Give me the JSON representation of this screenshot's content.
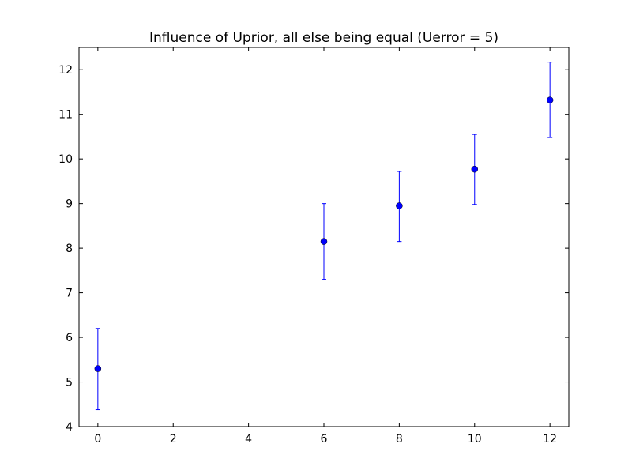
{
  "chart_data": {
    "type": "scatter",
    "title": "Influence of Uprior, all else being equal (Uerror = 5)",
    "xlabel": "",
    "ylabel": "",
    "xlim": [
      -0.5,
      12.5
    ],
    "ylim": [
      4,
      12.5
    ],
    "x_ticks": [
      0,
      2,
      4,
      6,
      8,
      10,
      12
    ],
    "y_ticks": [
      4,
      5,
      6,
      7,
      8,
      9,
      10,
      11,
      12
    ],
    "grid": false,
    "series": [
      {
        "color": "#0000ff",
        "points": [
          {
            "x": 0,
            "y": 5.3,
            "err_low": 4.38,
            "err_high": 6.2
          },
          {
            "x": 6,
            "y": 8.15,
            "err_low": 7.3,
            "err_high": 9.0
          },
          {
            "x": 8,
            "y": 8.95,
            "err_low": 8.15,
            "err_high": 9.72
          },
          {
            "x": 10,
            "y": 9.77,
            "err_low": 8.98,
            "err_high": 10.55
          },
          {
            "x": 12,
            "y": 11.32,
            "err_low": 10.48,
            "err_high": 12.17
          }
        ]
      }
    ]
  }
}
